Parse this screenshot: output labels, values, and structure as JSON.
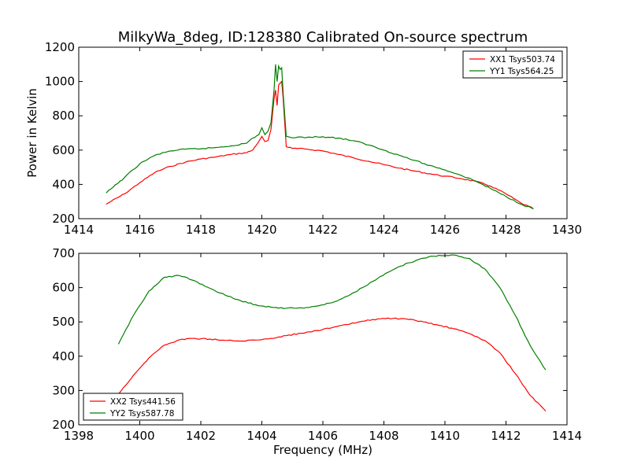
{
  "title": "MilkyWa_8deg, ID:128380 Calibrated On-source spectrum",
  "colors": {
    "xx": "#ff0000",
    "yy": "#008000",
    "frame": "#000000",
    "background": "#ffffff"
  },
  "chart_data": [
    {
      "type": "line",
      "title": "MilkyWa_8deg, ID:128380 Calibrated On-source spectrum",
      "xlabel": "",
      "ylabel": "Power in Kelvin",
      "xlim": [
        1414,
        1430
      ],
      "ylim": [
        200,
        1200
      ],
      "xticks": [
        1414,
        1416,
        1418,
        1420,
        1422,
        1424,
        1426,
        1428,
        1430
      ],
      "yticks": [
        200,
        400,
        600,
        800,
        1000,
        1200
      ],
      "grid": false,
      "legend": "top-right",
      "series": [
        {
          "name": "XX1 Tsys503.74",
          "color": "#ff0000",
          "x": [
            1414.9,
            1415.5,
            1416.0,
            1416.5,
            1417.0,
            1417.5,
            1418.0,
            1418.5,
            1419.0,
            1419.5,
            1419.7,
            1419.9,
            1420.0,
            1420.1,
            1420.2,
            1420.3,
            1420.4,
            1420.45,
            1420.5,
            1420.55,
            1420.6,
            1420.65,
            1420.7,
            1420.8,
            1421.0,
            1421.5,
            1422.0,
            1422.5,
            1423.0,
            1423.5,
            1424.0,
            1424.5,
            1425.0,
            1425.5,
            1426.0,
            1426.5,
            1427.0,
            1427.5,
            1428.0,
            1428.5,
            1428.9
          ],
          "y": [
            285,
            345,
            410,
            470,
            505,
            530,
            548,
            560,
            575,
            585,
            600,
            650,
            680,
            650,
            655,
            720,
            900,
            950,
            860,
            980,
            990,
            1000,
            900,
            620,
            610,
            605,
            595,
            575,
            555,
            535,
            515,
            495,
            478,
            462,
            448,
            435,
            418,
            390,
            345,
            290,
            258
          ]
        },
        {
          "name": "YY1 Tsys564.25",
          "color": "#008000",
          "x": [
            1414.9,
            1415.5,
            1416.0,
            1416.5,
            1417.0,
            1417.5,
            1418.0,
            1418.5,
            1419.0,
            1419.5,
            1419.7,
            1419.9,
            1420.0,
            1420.1,
            1420.2,
            1420.3,
            1420.4,
            1420.45,
            1420.5,
            1420.55,
            1420.6,
            1420.65,
            1420.7,
            1420.8,
            1421.0,
            1421.5,
            1422.0,
            1422.5,
            1423.0,
            1423.5,
            1424.0,
            1424.5,
            1425.0,
            1425.5,
            1426.0,
            1426.5,
            1427.0,
            1427.5,
            1428.0,
            1428.5,
            1428.9
          ],
          "y": [
            350,
            440,
            520,
            570,
            595,
            605,
            608,
            615,
            625,
            640,
            670,
            690,
            730,
            690,
            710,
            760,
            950,
            1100,
            1000,
            1090,
            1070,
            1080,
            930,
            680,
            672,
            675,
            678,
            670,
            655,
            630,
            600,
            570,
            540,
            510,
            485,
            455,
            420,
            375,
            330,
            285,
            258
          ]
        }
      ]
    },
    {
      "type": "line",
      "title": "",
      "xlabel": "Frequency (MHz)",
      "ylabel": "",
      "xlim": [
        1398,
        1414
      ],
      "ylim": [
        200,
        700
      ],
      "xticks": [
        1398,
        1400,
        1402,
        1404,
        1406,
        1408,
        1410,
        1412,
        1414
      ],
      "yticks": [
        200,
        300,
        400,
        500,
        600,
        700
      ],
      "grid": false,
      "legend": "bottom-left",
      "series": [
        {
          "name": "XX2 Tsys441.56",
          "color": "#ff0000",
          "x": [
            1399.3,
            1399.8,
            1400.3,
            1400.8,
            1401.3,
            1401.8,
            1402.3,
            1402.8,
            1403.3,
            1403.8,
            1404.3,
            1404.8,
            1405.3,
            1405.8,
            1406.3,
            1406.8,
            1407.3,
            1407.8,
            1408.3,
            1408.8,
            1409.3,
            1409.8,
            1410.3,
            1410.8,
            1411.3,
            1411.8,
            1412.3,
            1412.8,
            1413.3
          ],
          "y": [
            290,
            345,
            395,
            432,
            448,
            452,
            450,
            446,
            444,
            447,
            452,
            460,
            467,
            475,
            483,
            492,
            502,
            509,
            510,
            507,
            500,
            490,
            480,
            466,
            446,
            410,
            350,
            285,
            240
          ]
        },
        {
          "name": "YY2 Tsys587.78",
          "color": "#008000",
          "x": [
            1399.3,
            1399.8,
            1400.3,
            1400.8,
            1401.3,
            1401.8,
            1402.3,
            1402.8,
            1403.3,
            1403.8,
            1404.3,
            1404.8,
            1405.3,
            1405.8,
            1406.3,
            1406.8,
            1407.3,
            1407.8,
            1408.3,
            1408.8,
            1409.3,
            1409.8,
            1410.3,
            1410.8,
            1411.3,
            1411.8,
            1412.3,
            1412.8,
            1413.3
          ],
          "y": [
            435,
            520,
            590,
            630,
            635,
            620,
            598,
            578,
            562,
            550,
            543,
            540,
            541,
            546,
            556,
            575,
            600,
            627,
            652,
            672,
            686,
            694,
            695,
            685,
            655,
            600,
            520,
            430,
            360
          ]
        }
      ]
    }
  ]
}
